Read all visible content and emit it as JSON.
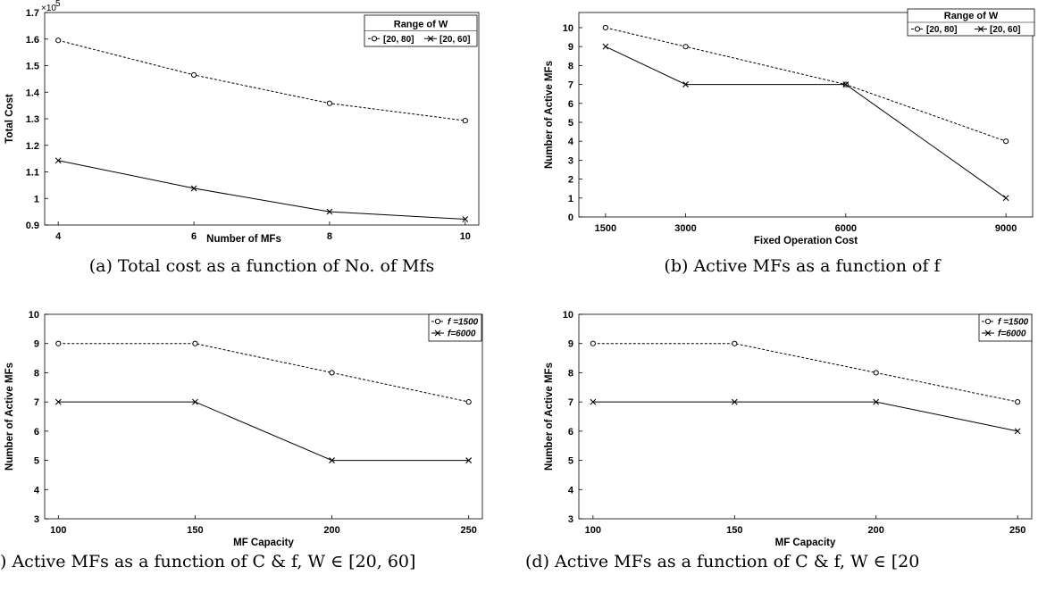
{
  "chart_data": [
    {
      "type": "line",
      "x": [
        4,
        6,
        8,
        10
      ],
      "xticks": [
        4,
        6,
        8,
        10
      ],
      "yticks": [
        "0.9",
        "1",
        "1.1",
        "1.2",
        "1.3",
        "1.4",
        "1.5",
        "1.6",
        "1.7"
      ],
      "ylim": [
        0.9,
        1.7
      ],
      "xlim": [
        3.8,
        10.2
      ],
      "y_multiplier": "×10",
      "y_multiplier_exp": "5",
      "xlabel": "Number of MFs",
      "ylabel": "Total Cost",
      "legend_title": "Range of W",
      "legend_layout": "horizontal",
      "legend_position": "top-right",
      "series": [
        {
          "name": "[20, 80]",
          "values": [
            1.595,
            1.465,
            1.358,
            1.293
          ],
          "style": "dashed",
          "marker": "circle"
        },
        {
          "name": "[20, 60]",
          "values": [
            1.143,
            1.038,
            0.95,
            0.922
          ],
          "style": "solid",
          "marker": "x"
        }
      ],
      "caption": "(a) Total cost as a function of No. of Mfs"
    },
    {
      "type": "line",
      "x": [
        1500,
        3000,
        6000,
        9000
      ],
      "xticks": [
        1500,
        3000,
        6000,
        9000
      ],
      "yticks": [
        "0",
        "1",
        "2",
        "3",
        "4",
        "5",
        "6",
        "7",
        "8",
        "9",
        "10"
      ],
      "ylim": [
        0,
        10.8
      ],
      "xlim": [
        1000,
        9500
      ],
      "xlabel": "Fixed Operation Cost",
      "ylabel": "Number of Active MFs",
      "legend_title": "Range of W",
      "legend_layout": "horizontal",
      "legend_position": "top-right",
      "series": [
        {
          "name": "[20, 80]",
          "values": [
            10,
            9,
            7,
            4
          ],
          "style": "dashed",
          "marker": "circle"
        },
        {
          "name": "[20, 60]",
          "values": [
            9,
            7,
            7,
            1
          ],
          "style": "solid",
          "marker": "x"
        }
      ],
      "caption": "(b) Active MFs as a function of f"
    },
    {
      "type": "line",
      "x": [
        100,
        150,
        200,
        250
      ],
      "xticks": [
        100,
        150,
        200,
        250
      ],
      "yticks": [
        "3",
        "4",
        "5",
        "6",
        "7",
        "8",
        "9",
        "10"
      ],
      "ylim": [
        3,
        10
      ],
      "xlim": [
        95,
        255
      ],
      "xlabel": "MF Capacity",
      "ylabel": "Number of Active MFs",
      "legend_layout": "vertical",
      "legend_position": "top-right",
      "series": [
        {
          "name": "f =1500",
          "values": [
            9,
            9,
            8,
            7
          ],
          "style": "dashed",
          "marker": "circle"
        },
        {
          "name": "f=6000",
          "values": [
            7,
            7,
            5,
            5
          ],
          "style": "solid",
          "marker": "x"
        }
      ],
      "caption": ") Active MFs as a function of C & f, W ∈ [20, 60]"
    },
    {
      "type": "line",
      "x": [
        100,
        150,
        200,
        250
      ],
      "xticks": [
        100,
        150,
        200,
        250
      ],
      "yticks": [
        "3",
        "4",
        "5",
        "6",
        "7",
        "8",
        "9",
        "10"
      ],
      "ylim": [
        3,
        10
      ],
      "xlim": [
        95,
        255
      ],
      "xlabel": "MF Capacity",
      "ylabel": "Number of Active MFs",
      "legend_layout": "vertical",
      "legend_position": "top-right",
      "series": [
        {
          "name": "f =1500",
          "values": [
            9,
            9,
            8,
            7
          ],
          "style": "dashed",
          "marker": "circle"
        },
        {
          "name": "f=6000",
          "values": [
            7,
            7,
            7,
            6
          ],
          "style": "solid",
          "marker": "x"
        }
      ],
      "caption": "(d) Active MFs as a function of C & f, W ∈ [20"
    }
  ]
}
